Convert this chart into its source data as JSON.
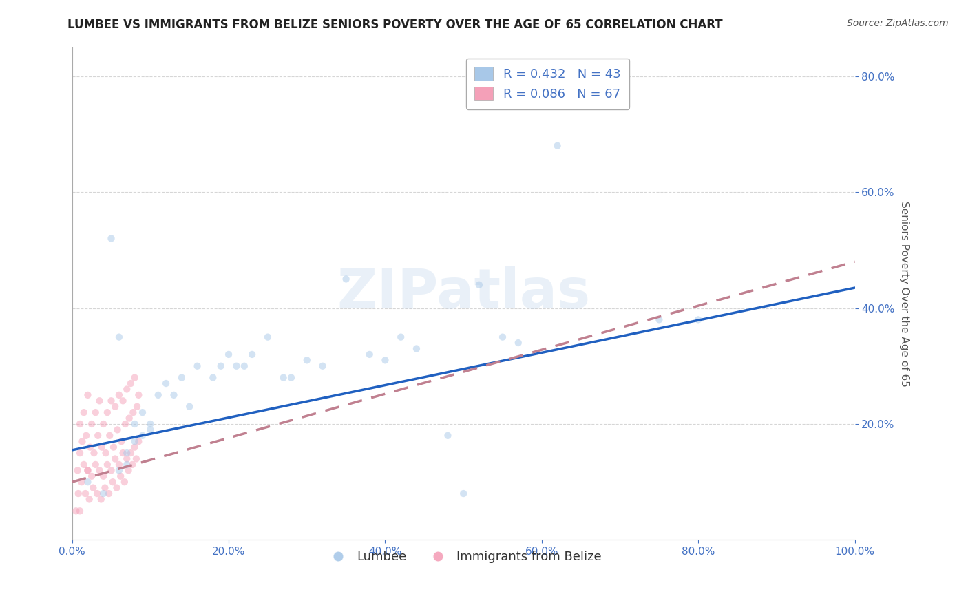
{
  "title": "LUMBEE VS IMMIGRANTS FROM BELIZE SENIORS POVERTY OVER THE AGE OF 65 CORRELATION CHART",
  "source": "Source: ZipAtlas.com",
  "ylabel": "Seniors Poverty Over the Age of 65",
  "xlabel": "",
  "lumbee_R": 0.432,
  "lumbee_N": 43,
  "belize_R": 0.086,
  "belize_N": 67,
  "lumbee_color": "#a8c8e8",
  "belize_color": "#f4a0b8",
  "lumbee_line_color": "#2060c0",
  "belize_line_color": "#c08090",
  "background_color": "#ffffff",
  "grid_color": "#cccccc",
  "title_color": "#222222",
  "legend_text_color": "#4472c4",
  "watermark": "ZIPatlas",
  "xlim": [
    0.0,
    1.0
  ],
  "ylim": [
    0.0,
    0.85
  ],
  "lumbee_x": [
    0.02,
    0.04,
    0.05,
    0.06,
    0.06,
    0.07,
    0.07,
    0.08,
    0.08,
    0.09,
    0.09,
    0.1,
    0.1,
    0.11,
    0.12,
    0.13,
    0.14,
    0.15,
    0.16,
    0.18,
    0.19,
    0.2,
    0.21,
    0.22,
    0.23,
    0.25,
    0.27,
    0.28,
    0.3,
    0.32,
    0.35,
    0.38,
    0.4,
    0.42,
    0.44,
    0.48,
    0.5,
    0.55,
    0.57,
    0.62,
    0.75,
    0.8,
    0.52
  ],
  "lumbee_y": [
    0.1,
    0.08,
    0.52,
    0.12,
    0.35,
    0.15,
    0.13,
    0.17,
    0.2,
    0.22,
    0.18,
    0.2,
    0.19,
    0.25,
    0.27,
    0.25,
    0.28,
    0.23,
    0.3,
    0.28,
    0.3,
    0.32,
    0.3,
    0.3,
    0.32,
    0.35,
    0.28,
    0.28,
    0.31,
    0.3,
    0.45,
    0.32,
    0.31,
    0.35,
    0.33,
    0.18,
    0.08,
    0.35,
    0.34,
    0.68,
    0.38,
    0.38,
    0.44
  ],
  "belize_x": [
    0.005,
    0.007,
    0.008,
    0.01,
    0.01,
    0.012,
    0.013,
    0.015,
    0.015,
    0.017,
    0.018,
    0.02,
    0.02,
    0.022,
    0.023,
    0.025,
    0.025,
    0.027,
    0.028,
    0.03,
    0.03,
    0.032,
    0.033,
    0.035,
    0.035,
    0.037,
    0.038,
    0.04,
    0.04,
    0.042,
    0.043,
    0.045,
    0.045,
    0.047,
    0.048,
    0.05,
    0.05,
    0.052,
    0.053,
    0.055,
    0.055,
    0.057,
    0.058,
    0.06,
    0.06,
    0.062,
    0.063,
    0.065,
    0.065,
    0.067,
    0.068,
    0.07,
    0.07,
    0.072,
    0.073,
    0.075,
    0.075,
    0.077,
    0.078,
    0.08,
    0.08,
    0.082,
    0.083,
    0.085,
    0.085,
    0.01,
    0.02
  ],
  "belize_y": [
    0.05,
    0.12,
    0.08,
    0.15,
    0.2,
    0.1,
    0.17,
    0.13,
    0.22,
    0.08,
    0.18,
    0.12,
    0.25,
    0.07,
    0.16,
    0.11,
    0.2,
    0.09,
    0.15,
    0.13,
    0.22,
    0.08,
    0.18,
    0.12,
    0.24,
    0.07,
    0.16,
    0.11,
    0.2,
    0.09,
    0.15,
    0.13,
    0.22,
    0.08,
    0.18,
    0.12,
    0.24,
    0.1,
    0.16,
    0.14,
    0.23,
    0.09,
    0.19,
    0.13,
    0.25,
    0.11,
    0.17,
    0.15,
    0.24,
    0.1,
    0.2,
    0.14,
    0.26,
    0.12,
    0.21,
    0.15,
    0.27,
    0.13,
    0.22,
    0.16,
    0.28,
    0.14,
    0.23,
    0.17,
    0.25,
    0.05,
    0.12
  ],
  "lumbee_line_x0": 0.0,
  "lumbee_line_y0": 0.155,
  "lumbee_line_x1": 1.0,
  "lumbee_line_y1": 0.435,
  "belize_line_x0": 0.0,
  "belize_line_y0": 0.1,
  "belize_line_x1": 1.0,
  "belize_line_y1": 0.48,
  "title_fontsize": 12,
  "axis_label_fontsize": 11,
  "tick_fontsize": 11,
  "legend_fontsize": 13,
  "marker_size": 55,
  "marker_alpha": 0.5,
  "line_width": 2.5
}
